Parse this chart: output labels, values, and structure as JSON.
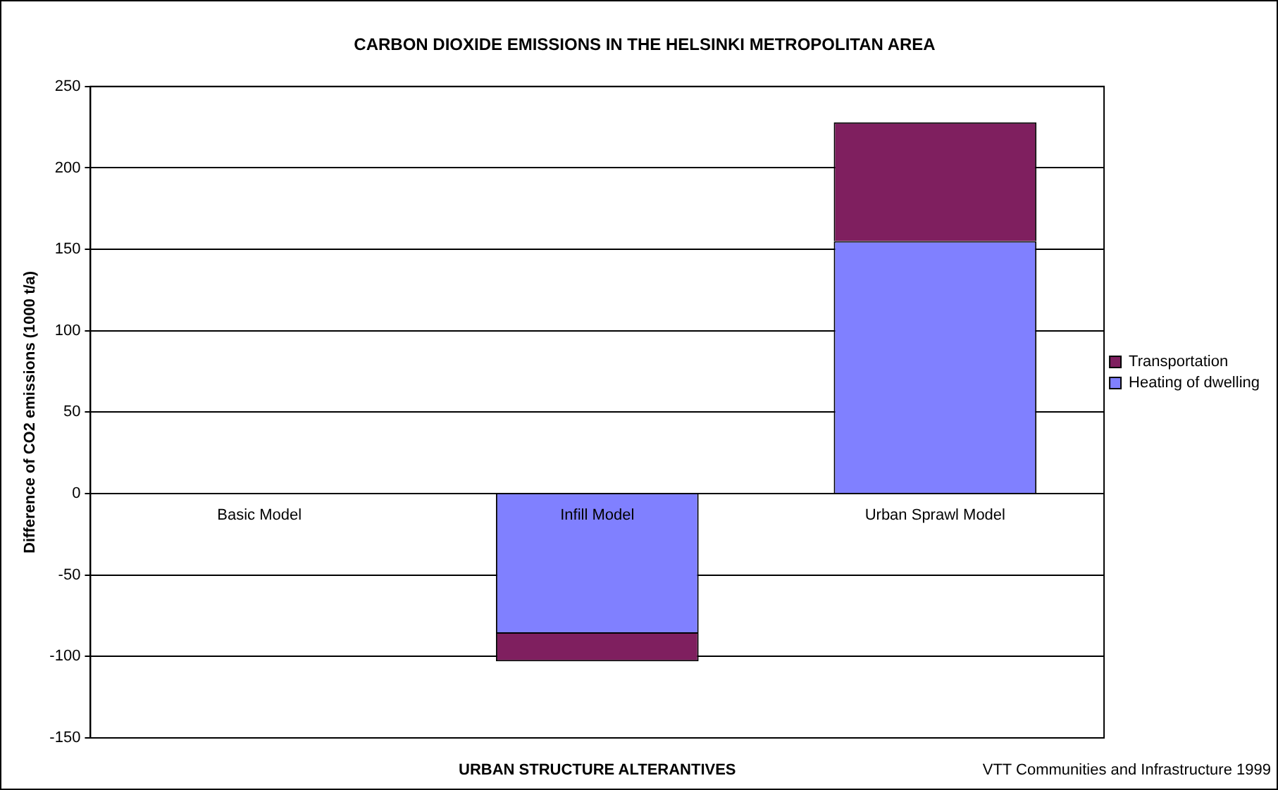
{
  "chart_data": {
    "type": "bar",
    "title": "CARBON DIOXIDE EMISSIONS IN THE HELSINKI METROPOLITAN AREA",
    "xlabel": "URBAN STRUCTURE ALTERANTIVES",
    "ylabel": "Difference of CO2 emissions (1000 t/a)",
    "categories": [
      "Basic Model",
      "Infill Model",
      "Urban Sprawl Model"
    ],
    "series": [
      {
        "name": "Heating of dwelling",
        "color": "#8080ff",
        "values": [
          0,
          -86,
          155
        ]
      },
      {
        "name": "Transportation",
        "color": "#7f1f5f",
        "values": [
          0,
          -17,
          73
        ]
      }
    ],
    "stacked": true,
    "ylim": [
      -150,
      250
    ],
    "yticks": [
      -150,
      -100,
      -50,
      0,
      50,
      100,
      150,
      200,
      250
    ],
    "grid": "y",
    "legend": "right",
    "annotations": [
      "VTT Communities and Infrastructure 1999"
    ]
  }
}
